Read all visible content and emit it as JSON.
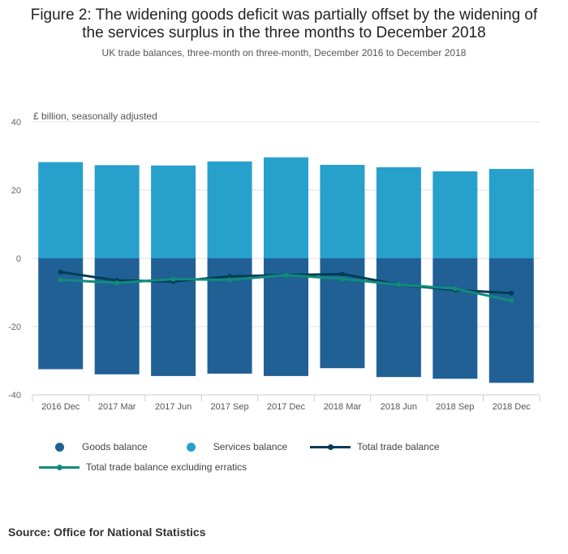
{
  "figure": {
    "title_line1": "Figure 2: The widening goods deficit was partially offset by the widening of",
    "title_line2": "the services surplus in the three months to December 2018",
    "subtitle": "UK trade balances, three-month on three-month, December 2016 to December 2018",
    "source": "Source: Office for National Statistics"
  },
  "colors": {
    "goods": "#206095",
    "services": "#27a0cc",
    "total": "#003c57",
    "total_ex_erratics": "#118c7b",
    "grid": "#e0e0e0",
    "axis": "#cccccc"
  },
  "legend": {
    "goods": "Goods balance",
    "services": "Services balance",
    "total": "Total trade balance",
    "total_ex_erratics": "Total trade balance excluding erratics"
  },
  "chart_data": {
    "type": "bar",
    "stacked": true,
    "title": "Figure 2: The widening goods deficit was partially offset by the widening of the services surplus in the three months to December 2018",
    "ylabel": "£ billion, seasonally adjusted",
    "xlabel": "",
    "ylim": [
      -40,
      40
    ],
    "yticks": [
      40,
      20,
      0,
      -20,
      -40
    ],
    "grid": true,
    "legend_position": "bottom",
    "categories": [
      "2016 Dec",
      "2017 Mar",
      "2017 Jun",
      "2017 Sep",
      "2017 Dec",
      "2018 Mar",
      "2018 Jun",
      "2018 Sep",
      "2018 Dec"
    ],
    "series": [
      {
        "name": "Goods balance",
        "kind": "bar",
        "values": [
          -32.5,
          -34.0,
          -34.5,
          -33.8,
          -34.5,
          -32.2,
          -34.8,
          -35.3,
          -36.5
        ]
      },
      {
        "name": "Services balance",
        "kind": "bar",
        "values": [
          28.2,
          27.3,
          27.2,
          28.4,
          29.6,
          27.4,
          26.7,
          25.5,
          26.2
        ]
      },
      {
        "name": "Total trade balance",
        "kind": "line",
        "values": [
          -4.0,
          -6.5,
          -6.8,
          -5.3,
          -4.9,
          -4.6,
          -7.7,
          -9.3,
          -10.2
        ]
      },
      {
        "name": "Total trade balance excluding erratics",
        "kind": "line",
        "values": [
          -6.3,
          -7.2,
          -6.1,
          -6.3,
          -4.9,
          -6.0,
          -7.7,
          -8.9,
          -12.4
        ]
      }
    ]
  }
}
